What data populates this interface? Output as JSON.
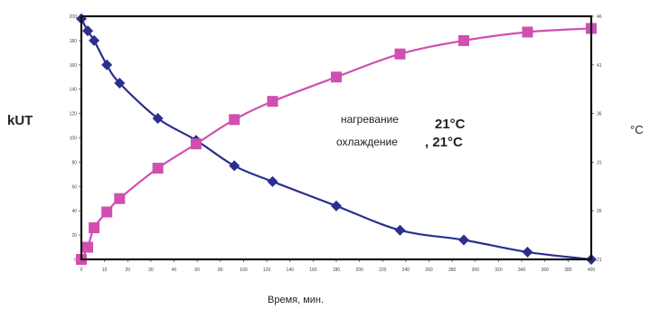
{
  "chart_data": {
    "type": "line",
    "xlabel": "Время, мин.",
    "ylabel_left": "kUT",
    "ylabel_right": "°C",
    "x_ticks": [
      "0",
      "10",
      "20",
      "30",
      "40",
      "60",
      "80",
      "100",
      "120",
      "140",
      "160",
      "180",
      "200",
      "220",
      "240",
      "260",
      "280",
      "300",
      "320",
      "340",
      "360",
      "380",
      "400"
    ],
    "ylim_left": [
      0,
      200
    ],
    "y_ticks_left": [
      "0",
      "20",
      "40",
      "60",
      "80",
      "100",
      "120",
      "140",
      "160",
      "180",
      "200"
    ],
    "ylim_right": [
      21,
      41
    ],
    "y_ticks_right": [
      "21",
      "26",
      "31",
      "36",
      "41",
      "46"
    ],
    "annotations": [
      {
        "label": "нагревание",
        "value": "21°C"
      },
      {
        "label": "охлаждение",
        "value": ", 21°C"
      }
    ],
    "series": [
      {
        "name": "охлаждение",
        "axis": "left",
        "color": "#2b2f8f",
        "marker": "diamond",
        "x": [
          0,
          5,
          10,
          20,
          30,
          60,
          90,
          120,
          150,
          200,
          250,
          300,
          350,
          400
        ],
        "y": [
          198,
          188,
          180,
          160,
          145,
          116,
          98,
          77,
          64,
          44,
          24,
          16,
          6,
          0
        ]
      },
      {
        "name": "нагревание",
        "axis": "right",
        "color": "#d04fb0",
        "marker": "square",
        "x": [
          0,
          5,
          10,
          20,
          30,
          60,
          90,
          120,
          150,
          200,
          250,
          300,
          350,
          400
        ],
        "y": [
          21,
          22,
          23.6,
          24.9,
          26,
          28.5,
          30.5,
          32.5,
          34,
          36,
          37.9,
          39,
          39.7,
          40
        ]
      }
    ]
  }
}
